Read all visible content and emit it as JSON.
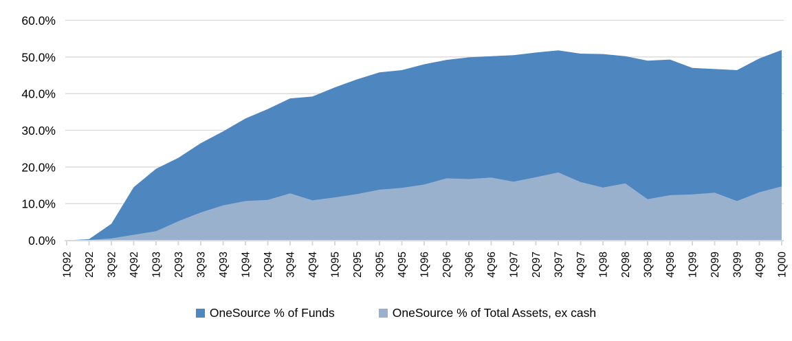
{
  "chart_data": {
    "type": "area",
    "mode": "overlapping",
    "title": "",
    "xlabel": "",
    "ylabel": "",
    "categories": [
      "1Q92",
      "2Q92",
      "3Q92",
      "4Q92",
      "1Q93",
      "2Q93",
      "3Q93",
      "4Q93",
      "1Q94",
      "2Q94",
      "3Q94",
      "4Q94",
      "1Q95",
      "2Q95",
      "3Q95",
      "4Q95",
      "1Q96",
      "2Q96",
      "3Q96",
      "4Q96",
      "1Q97",
      "2Q97",
      "3Q97",
      "4Q97",
      "1Q98",
      "2Q98",
      "3Q98",
      "4Q98",
      "1Q99",
      "2Q99",
      "3Q99",
      "4Q99",
      "1Q00"
    ],
    "series": [
      {
        "name": "OneSource % of Funds",
        "color": "#4E86C0",
        "values": [
          0.0,
          0.3,
          4.5,
          14.5,
          19.5,
          22.5,
          26.5,
          29.7,
          33.2,
          35.8,
          38.7,
          39.2,
          41.7,
          43.9,
          45.8,
          46.4,
          48.0,
          49.2,
          49.9,
          50.2,
          50.5,
          51.2,
          51.8,
          50.9,
          50.8,
          50.2,
          49.0,
          49.3,
          47.0,
          46.7,
          46.4,
          49.6,
          51.9
        ]
      },
      {
        "name": "OneSource % of Total Assets, ex cash",
        "color": "#9AB1CE",
        "values": [
          0.0,
          0.1,
          0.5,
          1.5,
          2.5,
          5.2,
          7.6,
          9.5,
          10.7,
          11.0,
          12.8,
          10.9,
          11.7,
          12.6,
          13.8,
          14.3,
          15.2,
          16.9,
          16.7,
          17.1,
          16.0,
          17.2,
          18.5,
          15.9,
          14.4,
          15.5,
          11.2,
          12.3,
          12.5,
          13.0,
          10.7,
          13.1,
          14.7
        ]
      }
    ],
    "ylim": [
      0,
      60
    ],
    "ytick_step": 10,
    "ytick_labels": [
      "0.0%",
      "10.0%",
      "20.0%",
      "30.0%",
      "40.0%",
      "50.0%",
      "60.0%"
    ],
    "grid": true,
    "gridline_color": "#D9D9D9",
    "axis_color": "#D9D9D9",
    "text_color": "#000000",
    "legend_position": "bottom"
  },
  "legend": {
    "items": [
      {
        "label": "OneSource % of Funds",
        "color": "#4E86C0"
      },
      {
        "label": "OneSource % of Total Assets, ex cash",
        "color": "#9AB1CE"
      }
    ]
  }
}
